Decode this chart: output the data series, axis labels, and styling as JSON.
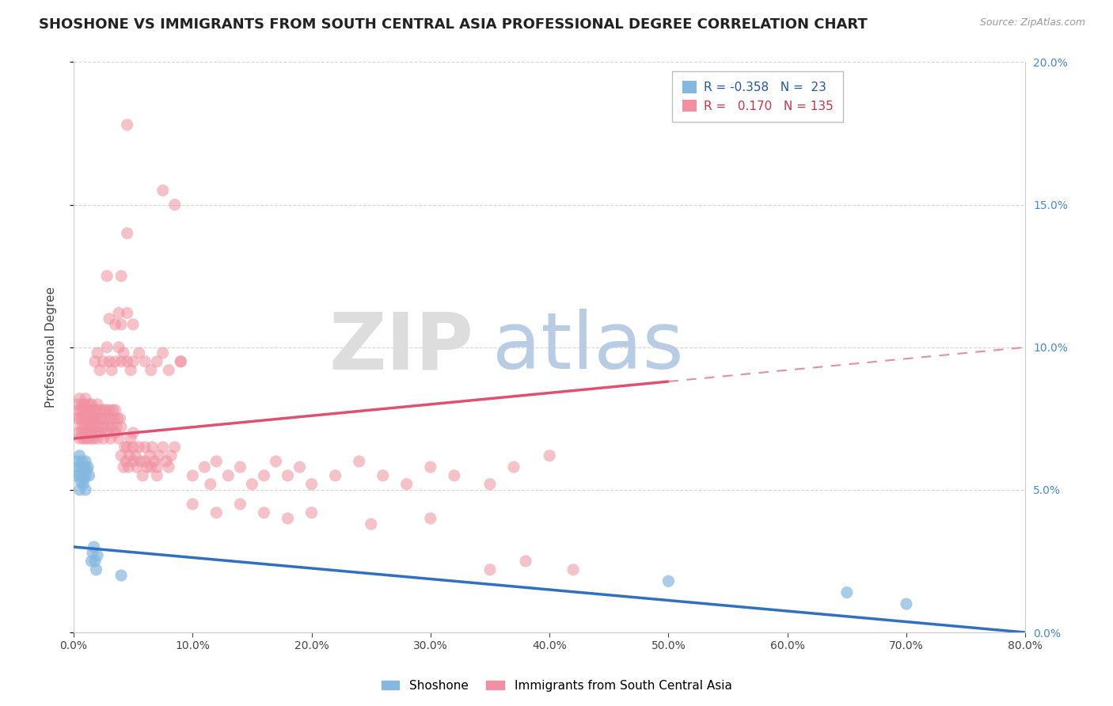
{
  "title": "SHOSHONE VS IMMIGRANTS FROM SOUTH CENTRAL ASIA PROFESSIONAL DEGREE CORRELATION CHART",
  "source_text": "Source: ZipAtlas.com",
  "ylabel": "Professional Degree",
  "xlim": [
    0.0,
    0.8
  ],
  "ylim": [
    0.0,
    0.2
  ],
  "shoshone_color": "#85b8e0",
  "immigrants_color": "#f090a0",
  "shoshone_line_color": "#3070c0",
  "immigrants_line_color": "#e05070",
  "immigrants_line2_color": "#e090a0",
  "title_fontsize": 13,
  "axis_label_fontsize": 11,
  "tick_fontsize": 10,
  "shoshone_line": [
    [
      0.0,
      0.03
    ],
    [
      0.8,
      0.0
    ]
  ],
  "immigrants_line_solid": [
    [
      0.0,
      0.068
    ],
    [
      0.5,
      0.088
    ]
  ],
  "immigrants_line_dashed": [
    [
      0.5,
      0.088
    ],
    [
      0.8,
      0.1
    ]
  ],
  "shoshone_scatter": [
    [
      0.002,
      0.055
    ],
    [
      0.003,
      0.06
    ],
    [
      0.004,
      0.058
    ],
    [
      0.005,
      0.062
    ],
    [
      0.005,
      0.055
    ],
    [
      0.005,
      0.05
    ],
    [
      0.006,
      0.058
    ],
    [
      0.006,
      0.053
    ],
    [
      0.007,
      0.06
    ],
    [
      0.007,
      0.055
    ],
    [
      0.008,
      0.057
    ],
    [
      0.008,
      0.052
    ],
    [
      0.009,
      0.058
    ],
    [
      0.009,
      0.054
    ],
    [
      0.01,
      0.06
    ],
    [
      0.01,
      0.055
    ],
    [
      0.01,
      0.05
    ],
    [
      0.011,
      0.057
    ],
    [
      0.012,
      0.058
    ],
    [
      0.013,
      0.055
    ],
    [
      0.015,
      0.025
    ],
    [
      0.016,
      0.028
    ],
    [
      0.017,
      0.03
    ],
    [
      0.018,
      0.025
    ],
    [
      0.019,
      0.022
    ],
    [
      0.02,
      0.027
    ],
    [
      0.04,
      0.02
    ],
    [
      0.5,
      0.018
    ],
    [
      0.65,
      0.014
    ],
    [
      0.7,
      0.01
    ]
  ],
  "immigrants_scatter": [
    [
      0.002,
      0.075
    ],
    [
      0.003,
      0.08
    ],
    [
      0.004,
      0.07
    ],
    [
      0.004,
      0.078
    ],
    [
      0.005,
      0.075
    ],
    [
      0.005,
      0.068
    ],
    [
      0.005,
      0.082
    ],
    [
      0.006,
      0.072
    ],
    [
      0.006,
      0.078
    ],
    [
      0.007,
      0.07
    ],
    [
      0.007,
      0.075
    ],
    [
      0.007,
      0.08
    ],
    [
      0.008,
      0.072
    ],
    [
      0.008,
      0.068
    ],
    [
      0.008,
      0.078
    ],
    [
      0.009,
      0.075
    ],
    [
      0.009,
      0.08
    ],
    [
      0.01,
      0.072
    ],
    [
      0.01,
      0.078
    ],
    [
      0.01,
      0.068
    ],
    [
      0.01,
      0.082
    ],
    [
      0.011,
      0.075
    ],
    [
      0.011,
      0.07
    ],
    [
      0.012,
      0.078
    ],
    [
      0.012,
      0.072
    ],
    [
      0.012,
      0.068
    ],
    [
      0.013,
      0.075
    ],
    [
      0.013,
      0.08
    ],
    [
      0.014,
      0.072
    ],
    [
      0.014,
      0.078
    ],
    [
      0.015,
      0.068
    ],
    [
      0.015,
      0.075
    ],
    [
      0.015,
      0.08
    ],
    [
      0.015,
      0.07
    ],
    [
      0.016,
      0.075
    ],
    [
      0.016,
      0.072
    ],
    [
      0.017,
      0.078
    ],
    [
      0.017,
      0.068
    ],
    [
      0.018,
      0.072
    ],
    [
      0.018,
      0.075
    ],
    [
      0.019,
      0.07
    ],
    [
      0.019,
      0.078
    ],
    [
      0.02,
      0.075
    ],
    [
      0.02,
      0.068
    ],
    [
      0.02,
      0.08
    ],
    [
      0.021,
      0.072
    ],
    [
      0.022,
      0.078
    ],
    [
      0.022,
      0.07
    ],
    [
      0.023,
      0.075
    ],
    [
      0.024,
      0.072
    ],
    [
      0.025,
      0.078
    ],
    [
      0.025,
      0.068
    ],
    [
      0.025,
      0.075
    ],
    [
      0.026,
      0.072
    ],
    [
      0.027,
      0.078
    ],
    [
      0.028,
      0.075
    ],
    [
      0.029,
      0.07
    ],
    [
      0.03,
      0.072
    ],
    [
      0.03,
      0.078
    ],
    [
      0.031,
      0.068
    ],
    [
      0.031,
      0.075
    ],
    [
      0.032,
      0.072
    ],
    [
      0.033,
      0.078
    ],
    [
      0.034,
      0.075
    ],
    [
      0.035,
      0.07
    ],
    [
      0.035,
      0.078
    ],
    [
      0.036,
      0.072
    ],
    [
      0.037,
      0.075
    ],
    [
      0.038,
      0.068
    ],
    [
      0.039,
      0.075
    ],
    [
      0.04,
      0.072
    ],
    [
      0.04,
      0.062
    ],
    [
      0.042,
      0.058
    ],
    [
      0.043,
      0.065
    ],
    [
      0.044,
      0.06
    ],
    [
      0.045,
      0.065
    ],
    [
      0.046,
      0.058
    ],
    [
      0.047,
      0.062
    ],
    [
      0.048,
      0.068
    ],
    [
      0.05,
      0.06
    ],
    [
      0.05,
      0.065
    ],
    [
      0.05,
      0.07
    ],
    [
      0.052,
      0.062
    ],
    [
      0.053,
      0.058
    ],
    [
      0.055,
      0.065
    ],
    [
      0.056,
      0.06
    ],
    [
      0.058,
      0.055
    ],
    [
      0.06,
      0.06
    ],
    [
      0.06,
      0.065
    ],
    [
      0.062,
      0.058
    ],
    [
      0.064,
      0.062
    ],
    [
      0.065,
      0.058
    ],
    [
      0.066,
      0.065
    ],
    [
      0.068,
      0.06
    ],
    [
      0.07,
      0.058
    ],
    [
      0.07,
      0.055
    ],
    [
      0.072,
      0.062
    ],
    [
      0.075,
      0.065
    ],
    [
      0.078,
      0.06
    ],
    [
      0.08,
      0.058
    ],
    [
      0.082,
      0.062
    ],
    [
      0.085,
      0.065
    ],
    [
      0.018,
      0.095
    ],
    [
      0.02,
      0.098
    ],
    [
      0.022,
      0.092
    ],
    [
      0.025,
      0.095
    ],
    [
      0.028,
      0.1
    ],
    [
      0.03,
      0.095
    ],
    [
      0.032,
      0.092
    ],
    [
      0.035,
      0.095
    ],
    [
      0.038,
      0.1
    ],
    [
      0.04,
      0.095
    ],
    [
      0.042,
      0.098
    ],
    [
      0.045,
      0.095
    ],
    [
      0.048,
      0.092
    ],
    [
      0.05,
      0.095
    ],
    [
      0.055,
      0.098
    ],
    [
      0.06,
      0.095
    ],
    [
      0.065,
      0.092
    ],
    [
      0.07,
      0.095
    ],
    [
      0.075,
      0.098
    ],
    [
      0.08,
      0.092
    ],
    [
      0.09,
      0.095
    ],
    [
      0.03,
      0.11
    ],
    [
      0.035,
      0.108
    ],
    [
      0.038,
      0.112
    ],
    [
      0.04,
      0.108
    ],
    [
      0.045,
      0.112
    ],
    [
      0.05,
      0.108
    ],
    [
      0.028,
      0.125
    ],
    [
      0.04,
      0.125
    ],
    [
      0.045,
      0.14
    ],
    [
      0.075,
      0.155
    ],
    [
      0.085,
      0.15
    ],
    [
      0.09,
      0.095
    ],
    [
      0.1,
      0.055
    ],
    [
      0.11,
      0.058
    ],
    [
      0.115,
      0.052
    ],
    [
      0.12,
      0.06
    ],
    [
      0.13,
      0.055
    ],
    [
      0.14,
      0.058
    ],
    [
      0.15,
      0.052
    ],
    [
      0.16,
      0.055
    ],
    [
      0.17,
      0.06
    ],
    [
      0.18,
      0.055
    ],
    [
      0.19,
      0.058
    ],
    [
      0.2,
      0.052
    ],
    [
      0.22,
      0.055
    ],
    [
      0.24,
      0.06
    ],
    [
      0.26,
      0.055
    ],
    [
      0.28,
      0.052
    ],
    [
      0.3,
      0.058
    ],
    [
      0.32,
      0.055
    ],
    [
      0.35,
      0.052
    ],
    [
      0.37,
      0.058
    ],
    [
      0.4,
      0.062
    ],
    [
      0.1,
      0.045
    ],
    [
      0.12,
      0.042
    ],
    [
      0.14,
      0.045
    ],
    [
      0.16,
      0.042
    ],
    [
      0.18,
      0.04
    ],
    [
      0.2,
      0.042
    ],
    [
      0.25,
      0.038
    ],
    [
      0.3,
      0.04
    ],
    [
      0.35,
      0.022
    ],
    [
      0.38,
      0.025
    ],
    [
      0.42,
      0.022
    ],
    [
      0.045,
      0.178
    ]
  ]
}
